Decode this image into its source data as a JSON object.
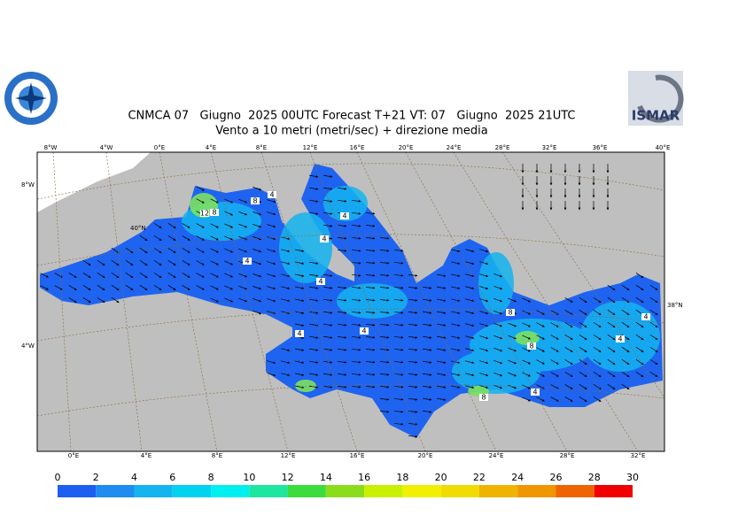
{
  "header": {
    "title_line1": "CNMCA 07   Giugno  2025 00UTC Forecast T+21 VT: 07   Giugno  2025 21UTC",
    "title_line2": "Vento a 10 metri (metri/sec) + direzione media",
    "logo_right": "ISMAR"
  },
  "map": {
    "top_labels": [
      "8°W",
      "4°W",
      "0°E",
      "4°E",
      "8°E",
      "12°E",
      "16°E",
      "20°E",
      "24°E",
      "28°E",
      "32°E",
      "36°E",
      "40°E"
    ],
    "bottom_labels": [
      "0°E",
      "4°E",
      "8°E",
      "12°E",
      "16°E",
      "20°E",
      "24°E",
      "28°E",
      "32°E"
    ],
    "left_labels": [
      "8°W",
      "40°N",
      "4°W"
    ],
    "right_labels": [
      "38°N"
    ],
    "contour_labels": [
      "12",
      "8",
      "8",
      "4",
      "4",
      "4",
      "4",
      "4",
      "4",
      "4",
      "8",
      "8",
      "4",
      "4",
      "4",
      "8"
    ]
  },
  "legend": {
    "ticks": [
      0,
      2,
      4,
      6,
      8,
      10,
      12,
      14,
      16,
      18,
      20,
      22,
      24,
      26,
      28,
      30
    ],
    "colors": [
      "#1e5ef0",
      "#1e8cf0",
      "#14b4f0",
      "#00d2f0",
      "#00f0f0",
      "#1ee6a0",
      "#3cdc3c",
      "#8cdc1e",
      "#c8f000",
      "#f0f000",
      "#f0dc00",
      "#f0b400",
      "#f09600",
      "#f06400",
      "#f00000",
      "#f0009a"
    ]
  }
}
